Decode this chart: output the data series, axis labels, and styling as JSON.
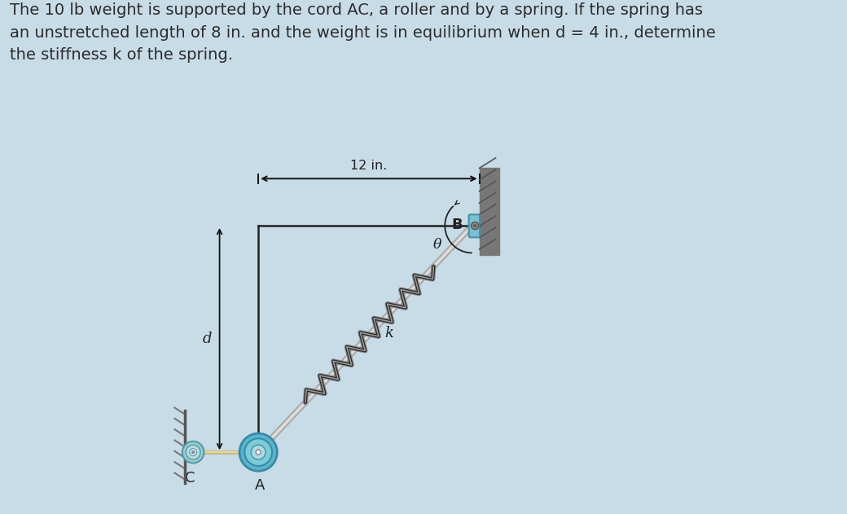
{
  "bg_color": "#c8dce8",
  "diagram_bg": "#ffffff",
  "title_text": "The 10 lb weight is supported by the cord AC, a roller and by a spring. If the spring has\nan unstretched length of 8 in. and the weight is in equilibrium when d = 4 in., determine\nthe stiffness k of the spring.",
  "title_color": "#2c2c2c",
  "title_fontsize": 14.0,
  "dim_label": "12 in.",
  "label_d": "d",
  "label_k": "k",
  "label_theta": "θ",
  "label_B": "B",
  "label_C": "C",
  "label_A": "A",
  "wall_color": "#555555",
  "wall_hatch_color": "#777777",
  "rod_color_outer": "#aaaaaa",
  "rod_color_inner": "#dddddd",
  "spring_color": "#333333",
  "roller_A_outer": "#6ec0d8",
  "roller_A_mid": "#4aa8c8",
  "roller_A_inner_bg": "#88ccdd",
  "roller_C_outer": "#88cccc",
  "roller_C_mid": "#aadddd",
  "line_color": "#222222",
  "bracket_color": "#7ab0c0",
  "dim_arrow_color": "#111111"
}
